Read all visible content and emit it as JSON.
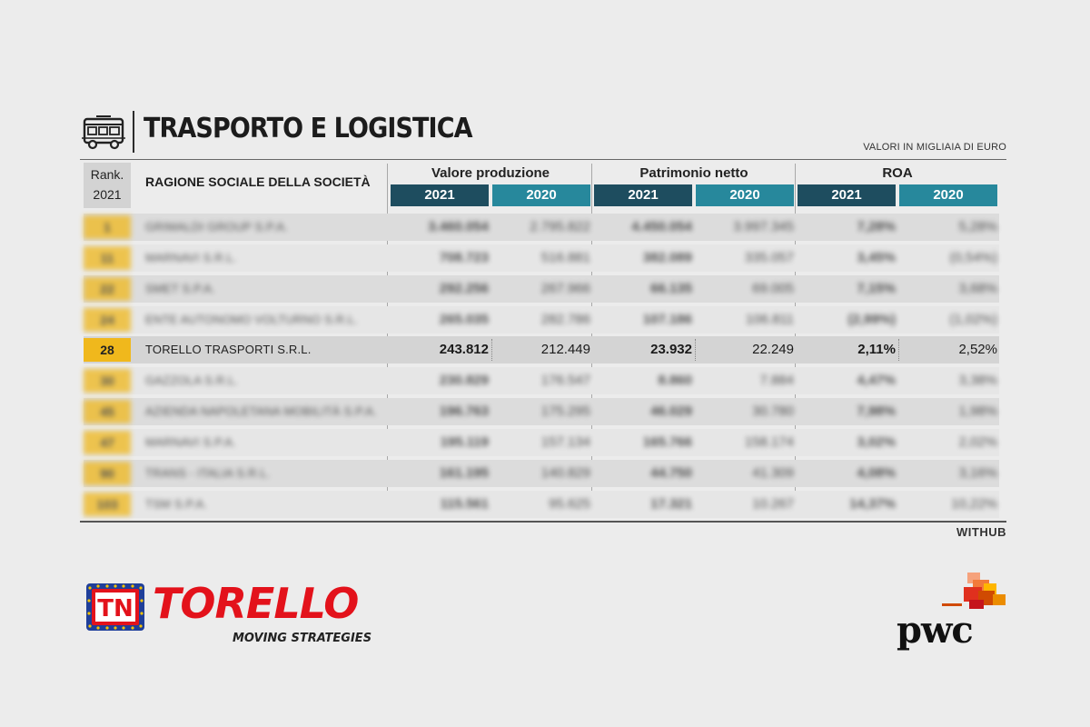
{
  "header": {
    "title": "TRASPORTO E LOGISTICA",
    "subtitle": "VALORI IN MIGLIAIA DI EURO",
    "icon": "bus-icon"
  },
  "table": {
    "rank_label": "Rank.",
    "rank_year": "2021",
    "company_label": "RAGIONE SOCIALE DELLA SOCIETÀ",
    "groups": [
      "Valore produzione",
      "Patrimonio netto",
      "ROA"
    ],
    "years": [
      "2021",
      "2020"
    ],
    "rows": [
      {
        "rank": "1",
        "company": "GRIMALDI GROUP S.P.A.",
        "vp21": "3.460.054",
        "vp20": "2.795.822",
        "pn21": "4.450.054",
        "pn20": "3.997.345",
        "roa21": "7,28%",
        "roa20": "5,28%",
        "blurred": true
      },
      {
        "rank": "11",
        "company": "MARNAVI S.R.L.",
        "vp21": "708.723",
        "vp20": "516.881",
        "pn21": "382.089",
        "pn20": "335.057",
        "roa21": "3,45%",
        "roa20": "(0,54%)",
        "blurred": true
      },
      {
        "rank": "22",
        "company": "SMET S.P.A.",
        "vp21": "292.256",
        "vp20": "267.966",
        "pn21": "66.135",
        "pn20": "69.005",
        "roa21": "7,15%",
        "roa20": "3,68%",
        "blurred": true
      },
      {
        "rank": "24",
        "company": "ENTE AUTONOMO VOLTURNO S.R.L.",
        "vp21": "265.035",
        "vp20": "282.786",
        "pn21": "107.186",
        "pn20": "106.811",
        "roa21": "(2,99%)",
        "roa20": "(1,02%)",
        "blurred": true
      },
      {
        "rank": "28",
        "company": "TORELLO TRASPORTI S.R.L.",
        "vp21": "243.812",
        "vp20": "212.449",
        "pn21": "23.932",
        "pn20": "22.249",
        "roa21": "2,11%",
        "roa20": "2,52%",
        "blurred": false
      },
      {
        "rank": "30",
        "company": "GAZZOLA S.R.L.",
        "vp21": "230.829",
        "vp20": "176.547",
        "pn21": "8.860",
        "pn20": "7.884",
        "roa21": "4,47%",
        "roa20": "3,38%",
        "blurred": true
      },
      {
        "rank": "45",
        "company": "AZIENDA NAPOLETANA MOBILITÀ S.P.A.",
        "vp21": "196.763",
        "vp20": "175.295",
        "pn21": "46.029",
        "pn20": "30.780",
        "roa21": "7,98%",
        "roa20": "1,98%",
        "blurred": true
      },
      {
        "rank": "47",
        "company": "MARNAVI S.P.A.",
        "vp21": "195.119",
        "vp20": "157.134",
        "pn21": "165.766",
        "pn20": "158.174",
        "roa21": "3,02%",
        "roa20": "2,02%",
        "blurred": true
      },
      {
        "rank": "90",
        "company": "TRANS - ITALIA S.R.L.",
        "vp21": "161.195",
        "vp20": "140.829",
        "pn21": "44.750",
        "pn20": "41.309",
        "roa21": "4,08%",
        "roa20": "3,16%",
        "blurred": true
      },
      {
        "rank": "103",
        "company": "TSM S.P.A.",
        "vp21": "115.561",
        "vp20": "95.625",
        "pn21": "17.321",
        "pn20": "10.267",
        "roa21": "14,37%",
        "roa20": "10,22%",
        "blurred": true
      }
    ],
    "source": "WITHUB"
  },
  "logos": {
    "torello_word": "TORELLO",
    "torello_badge": "TN",
    "torello_tagline": "MOVING STRATEGIES",
    "pwc_word": "pwc"
  },
  "colors": {
    "rank_yellow": "#f0b81c",
    "year_2021": "#1e4d5f",
    "year_2020": "#27889c",
    "torello_red": "#e3121b",
    "background": "#ececec"
  }
}
